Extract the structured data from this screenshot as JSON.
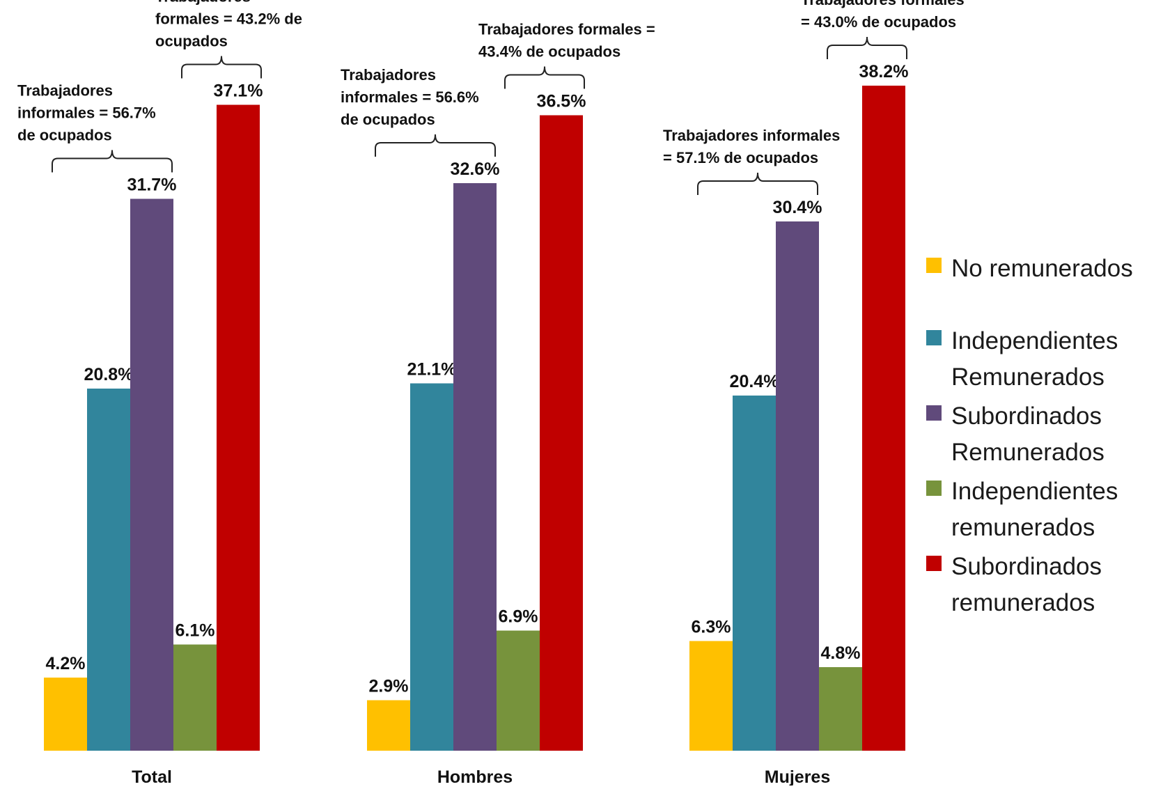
{
  "chart_data": {
    "type": "bar",
    "categories": [
      "Total",
      "Hombres",
      "Mujeres"
    ],
    "series": [
      {
        "name": "No remunerados",
        "color": "#FFC000",
        "values": [
          4.2,
          2.9,
          6.3
        ]
      },
      {
        "name": "Independientes Remunerados",
        "color": "#31859C",
        "values": [
          20.8,
          21.1,
          20.4
        ]
      },
      {
        "name": "Subordinados Remunerados",
        "color": "#604A7B",
        "values": [
          31.7,
          32.6,
          30.4
        ]
      },
      {
        "name": "Independientes remunerados",
        "color": "#77933C",
        "values": [
          6.1,
          6.9,
          4.8
        ]
      },
      {
        "name": "Subordinados remunerados",
        "color": "#C00000",
        "values": [
          37.1,
          36.5,
          38.2
        ]
      }
    ],
    "value_labels": [
      [
        "4.2%",
        "20.8%",
        "31.7%",
        "6.1%",
        "37.1%"
      ],
      [
        "2.9%",
        "21.1%",
        "32.6%",
        "6.9%",
        "36.5%"
      ],
      [
        "6.3%",
        "20.4%",
        "30.4%",
        "4.8%",
        "38.2%"
      ]
    ],
    "annotations": [
      {
        "group": "Total",
        "kind": "informales",
        "lines": [
          "Trabajadores",
          "informales = 56.7%",
          "de ocupados"
        ]
      },
      {
        "group": "Total",
        "kind": "formales",
        "lines": [
          "Trabajadores",
          "formales = 43.2% de",
          "ocupados"
        ]
      },
      {
        "group": "Hombres",
        "kind": "informales",
        "lines": [
          "Trabajadores",
          "informales = 56.6%",
          "de ocupados"
        ]
      },
      {
        "group": "Hombres",
        "kind": "formales",
        "lines": [
          "Trabajadores formales =",
          "43.4% de ocupados"
        ]
      },
      {
        "group": "Mujeres",
        "kind": "informales",
        "lines": [
          "Trabajadores informales",
          "= 57.1% de ocupados"
        ]
      },
      {
        "group": "Mujeres",
        "kind": "formales",
        "lines": [
          "Trabajadores formales",
          "= 43.0% de ocupados"
        ]
      }
    ],
    "legend": {
      "position": "right",
      "items": [
        {
          "label": "No remunerados",
          "color": "#FFC000"
        },
        {
          "label": "Independientes\nRemunerados",
          "color": "#31859C"
        },
        {
          "label": "Subordinados\nRemunerados",
          "color": "#604A7B"
        },
        {
          "label": "Independientes\nremunerados",
          "color": "#77933C"
        },
        {
          "label": "Subordinados\nremunerados",
          "color": "#C00000"
        }
      ]
    },
    "ylim": [
      0,
      40
    ],
    "grid": false,
    "axes_visible": false
  }
}
